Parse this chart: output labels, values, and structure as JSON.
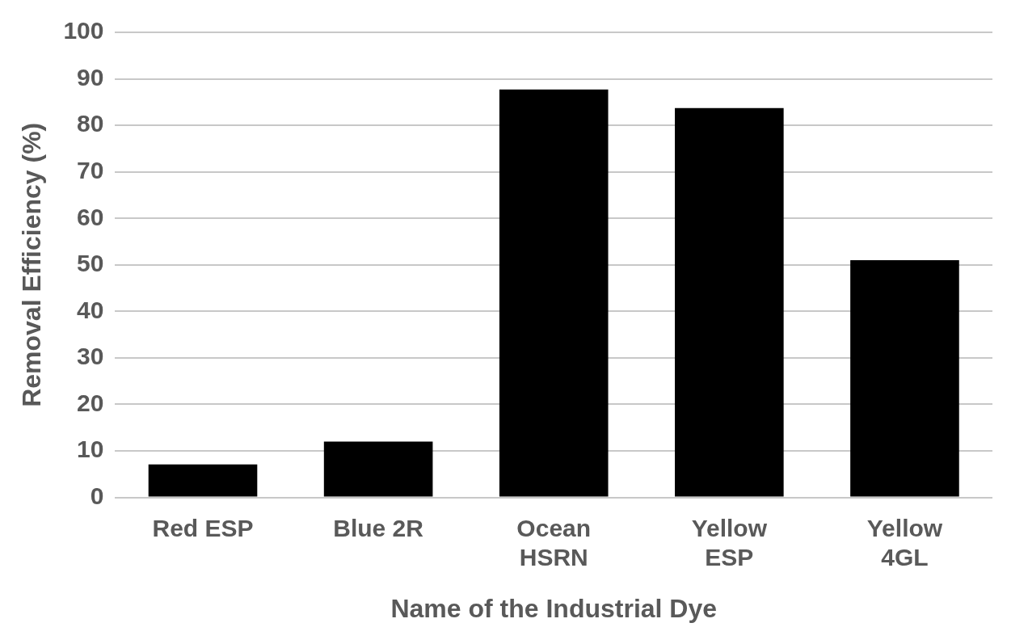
{
  "chart_data": {
    "type": "bar",
    "xlabel": "Name of the Industrial Dye",
    "ylabel": "Removal Efficiency (%)",
    "categories": [
      "Red ESP",
      "Blue 2R",
      "Ocean HSRN",
      "Yellow ESP",
      "Yellow 4GL"
    ],
    "values": [
      7.1,
      12.0,
      87.7,
      83.7,
      51.0
    ],
    "color": "#000000",
    "ylim": [
      0,
      100
    ],
    "yticks": [
      0,
      10,
      20,
      30,
      40,
      50,
      60,
      70,
      80,
      90,
      100
    ],
    "grid": "y",
    "legend": false
  }
}
